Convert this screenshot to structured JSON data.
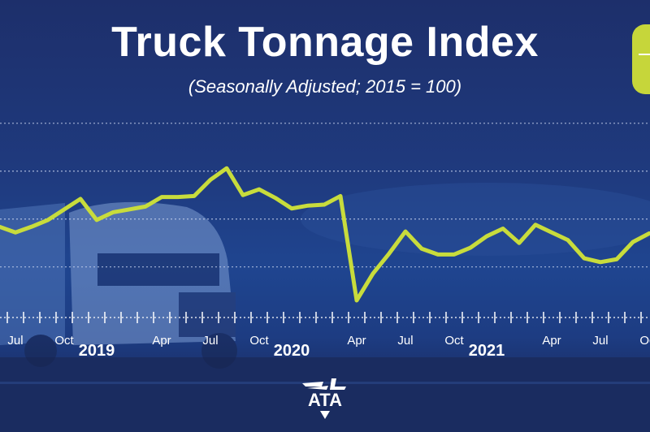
{
  "header": {
    "title": "Truck Tonnage Index",
    "subtitle": "(Seasonally Adjusted; 2015 = 100)"
  },
  "logo": {
    "text": "ATA"
  },
  "colors": {
    "background": "#1f3a7e",
    "line": "#c8dc3c",
    "text": "#ffffff",
    "accent_tab": "#c6d63a"
  },
  "chart_data": {
    "type": "line",
    "title": "Truck Tonnage Index",
    "subtitle": "(Seasonally Adjusted; 2015 = 100)",
    "xlabel": "",
    "ylabel": "",
    "grid": true,
    "ylim": [
      104.8,
      126
    ],
    "x": [
      "2018-06",
      "2018-07",
      "2018-08",
      "2018-09",
      "2018-10",
      "2018-11",
      "2018-12",
      "2019-01",
      "2019-02",
      "2019-03",
      "2019-04",
      "2019-05",
      "2019-06",
      "2019-07",
      "2019-08",
      "2019-09",
      "2019-10",
      "2019-11",
      "2019-12",
      "2020-01",
      "2020-02",
      "2020-03",
      "2020-04",
      "2020-05",
      "2020-06",
      "2020-07",
      "2020-08",
      "2020-09",
      "2020-10",
      "2020-11",
      "2020-12",
      "2021-01",
      "2021-02",
      "2021-03",
      "2021-04",
      "2021-05",
      "2021-06",
      "2021-07",
      "2021-08",
      "2021-09",
      "2021-10"
    ],
    "series": [
      {
        "values": [
          114.2,
          113.6,
          114.2,
          114.9,
          116.0,
          117.1,
          114.9,
          115.7,
          116.0,
          116.3,
          117.3,
          117.3,
          117.4,
          119.1,
          120.3,
          117.5,
          118.1,
          117.2,
          116.1,
          116.4,
          116.5,
          117.4,
          106.5,
          109.3,
          111.4,
          113.7,
          111.9,
          111.3,
          111.3,
          112.0,
          113.2,
          114.0,
          112.5,
          114.4,
          113.6,
          112.8,
          110.9,
          110.5,
          110.8,
          112.6,
          113.5
        ]
      }
    ],
    "gridlines": [
      110,
      115,
      120,
      125
    ],
    "month_labels": [
      {
        "month": "2018-07",
        "label": "Jul"
      },
      {
        "month": "2018-10",
        "label": "Oct"
      },
      {
        "month": "2019-04",
        "label": "Apr"
      },
      {
        "month": "2019-07",
        "label": "Jul"
      },
      {
        "month": "2019-10",
        "label": "Oct"
      },
      {
        "month": "2020-04",
        "label": "Apr"
      },
      {
        "month": "2020-07",
        "label": "Jul"
      },
      {
        "month": "2020-10",
        "label": "Oct"
      },
      {
        "month": "2021-04",
        "label": "Apr"
      },
      {
        "month": "2021-07",
        "label": "Jul"
      },
      {
        "month": "2021-10",
        "label": "Oct"
      }
    ],
    "year_labels": [
      {
        "month": "2019-01",
        "label": "2019"
      },
      {
        "month": "2020-01",
        "label": "2020"
      },
      {
        "month": "2021-01",
        "label": "2021"
      }
    ]
  }
}
